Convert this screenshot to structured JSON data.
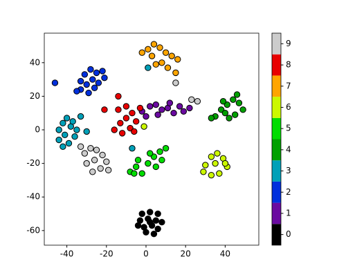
{
  "chart_data": {
    "type": "scatter",
    "x": [
      -2,
      2,
      6,
      -3,
      1,
      5,
      8,
      -1,
      3,
      6,
      0,
      4,
      -4,
      2,
      -2,
      2,
      5,
      8,
      11,
      14,
      17,
      19,
      22,
      6,
      12,
      0,
      -33,
      -30,
      -27,
      -25,
      -28,
      -31,
      -24,
      -21,
      -22,
      -33,
      -35,
      -29,
      -26,
      -46,
      -44,
      -42,
      -40,
      -38,
      -41,
      -44,
      -39,
      -36,
      -37,
      -42,
      -35,
      -30,
      -33,
      -7,
      1,
      35,
      38,
      41,
      44,
      47,
      49,
      45,
      42,
      39,
      33,
      46,
      40,
      -8,
      -5,
      -2,
      1,
      4,
      7,
      10,
      5,
      2,
      -4,
      8,
      -6,
      30,
      33,
      36,
      39,
      41,
      37,
      33,
      35,
      29,
      40,
      -1,
      -2,
      1,
      4,
      7,
      10,
      13,
      16,
      8,
      5,
      11,
      15,
      3,
      -16,
      -13,
      -10,
      -7,
      -5,
      -8,
      -12,
      -3,
      -14,
      -10,
      -6,
      -21,
      -14,
      -31,
      -28,
      -25,
      -22,
      -20,
      -23,
      -27,
      -30,
      -26,
      -19,
      -33,
      23,
      26,
      15
    ],
    "y": [
      -50,
      -49,
      -50,
      -54,
      -53,
      -54,
      -55,
      -58,
      -57,
      -59,
      -61,
      -62,
      -57,
      -55,
      11,
      14,
      15,
      12,
      13,
      10,
      14,
      11,
      13,
      9,
      16,
      8,
      24,
      27,
      30,
      34,
      36,
      33,
      28,
      31,
      35,
      29,
      23,
      22,
      25,
      28,
      0,
      4,
      7,
      2,
      -3,
      -6,
      -8,
      -4,
      5,
      -10,
      0,
      -1,
      8,
      -11,
      37,
      8,
      12,
      15,
      18,
      16,
      12,
      9,
      7,
      17,
      7,
      21,
      10,
      -25,
      -22,
      -26,
      -20,
      -16,
      -13,
      -11,
      -22,
      -14,
      -18,
      -18,
      -26,
      -21,
      -16,
      -14,
      -17,
      -22,
      -26,
      -27,
      -20,
      -25,
      -20,
      2,
      46,
      48,
      51,
      49,
      46,
      44,
      42,
      40,
      39,
      37,
      34,
      44,
      0,
      4,
      7,
      10,
      5,
      1,
      -2,
      13,
      12,
      14,
      -1,
      12,
      20,
      -14,
      -11,
      -12,
      -15,
      -19,
      -23,
      -25,
      -20,
      -18,
      -24,
      -10,
      18,
      17,
      28
    ],
    "c": [
      0,
      0,
      0,
      0,
      0,
      0,
      0,
      0,
      0,
      0,
      0,
      0,
      0,
      0,
      1,
      1,
      1,
      1,
      1,
      1,
      1,
      1,
      1,
      1,
      1,
      1,
      2,
      2,
      2,
      2,
      2,
      2,
      2,
      2,
      2,
      2,
      2,
      2,
      2,
      2,
      3,
      3,
      3,
      3,
      3,
      3,
      3,
      3,
      3,
      3,
      3,
      3,
      3,
      3,
      3,
      4,
      4,
      4,
      4,
      4,
      4,
      4,
      4,
      4,
      4,
      4,
      4,
      5,
      5,
      5,
      5,
      5,
      5,
      5,
      5,
      5,
      5,
      5,
      5,
      6,
      6,
      6,
      6,
      6,
      6,
      6,
      6,
      6,
      6,
      6,
      7,
      7,
      7,
      7,
      7,
      7,
      7,
      7,
      7,
      7,
      7,
      7,
      8,
      8,
      8,
      8,
      8,
      8,
      8,
      8,
      8,
      8,
      8,
      8,
      8,
      9,
      9,
      9,
      9,
      9,
      9,
      9,
      9,
      9,
      9,
      9,
      9,
      9,
      9
    ],
    "xlim": [
      -51.4,
      57
    ],
    "ylim": [
      -68.7,
      57.6
    ],
    "xticks": [
      -40,
      -20,
      0,
      20,
      40
    ],
    "yticks": [
      -60,
      -40,
      -20,
      0,
      20,
      40
    ],
    "colorbar": {
      "colors": [
        "#000000",
        "#6a0aa0",
        "#0030dd",
        "#00a0b8",
        "#00a000",
        "#00dd00",
        "#ccf800",
        "#ffa500",
        "#e80000",
        "#cccccc"
      ],
      "lim": [
        -0.5,
        9.5
      ],
      "ticks": [
        0,
        1,
        2,
        3,
        4,
        5,
        6,
        7,
        8,
        9
      ]
    }
  }
}
